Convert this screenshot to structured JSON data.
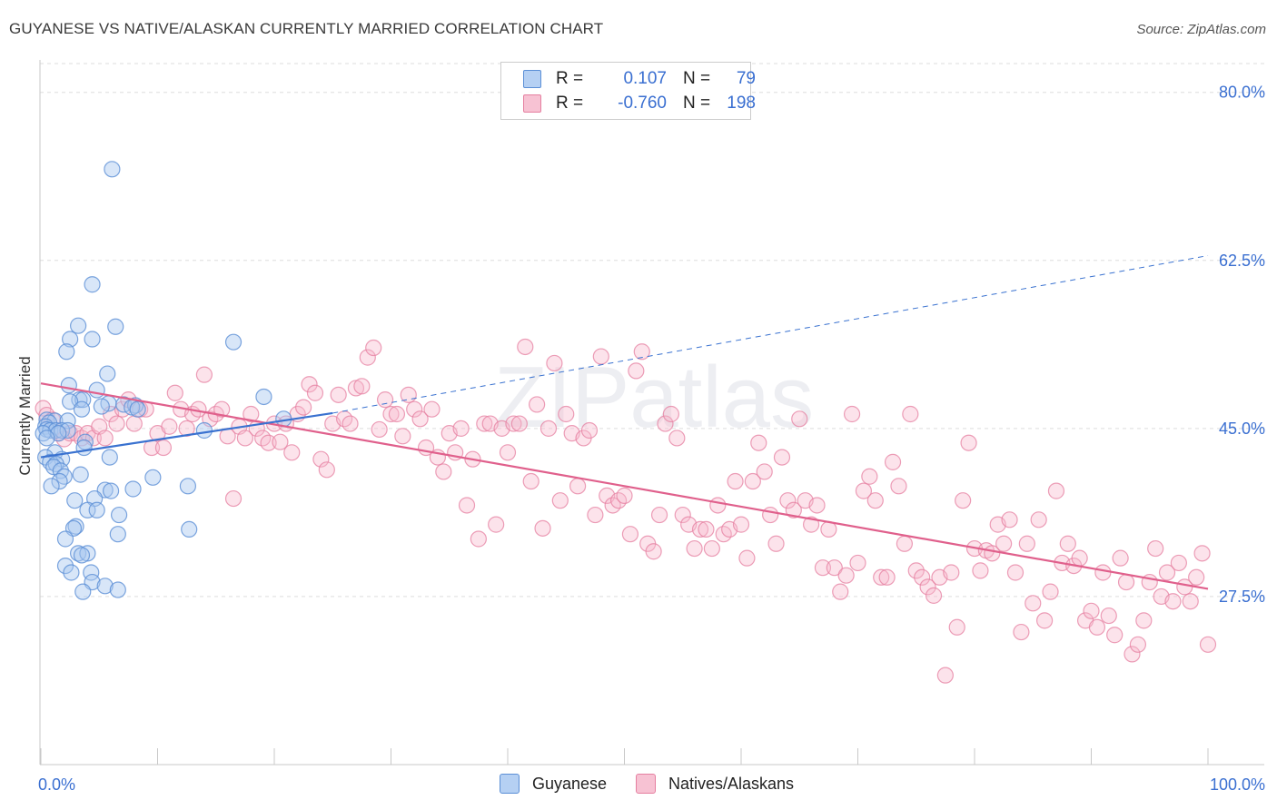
{
  "title": "GUYANESE VS NATIVE/ALASKAN CURRENTLY MARRIED CORRELATION CHART",
  "source": "Source: ZipAtlas.com",
  "watermark": "ZIPatlas",
  "legend": {
    "rows": [
      {
        "r_label": "R =",
        "r_value": "0.107",
        "n_label": "N =",
        "n_value": "79"
      },
      {
        "r_label": "R =",
        "r_value": "-0.760",
        "n_label": "N =",
        "n_value": "198"
      }
    ]
  },
  "bottom_legend": [
    "Guyanese",
    "Natives/Alaskans"
  ],
  "colors": {
    "guyanese_fill": "#a8c8f0",
    "guyanese_stroke": "#5b8fd6",
    "guyanese_line": "#3a72d0",
    "natives_fill": "#f7b8cc",
    "natives_stroke": "#e57fa0",
    "natives_line": "#e0608c",
    "tick_label": "#3a6fd1"
  },
  "chart_data": {
    "type": "scatter",
    "title": "GUYANESE VS NATIVE/ALASKAN CURRENTLY MARRIED CORRELATION CHART",
    "xlabel": "",
    "ylabel": "Currently Married",
    "xlim": [
      0,
      100
    ],
    "ylim": [
      10,
      83
    ],
    "x_tick_labels": [
      "0.0%",
      "100.0%"
    ],
    "y_ticks": [
      27.5,
      45.0,
      62.5,
      80.0
    ],
    "y_tick_labels": [
      "27.5%",
      "45.0%",
      "62.5%",
      "80.0%"
    ],
    "grid": true,
    "series": [
      {
        "name": "Guyanese",
        "points": [
          [
            6.1,
            72
          ],
          [
            4.4,
            60
          ],
          [
            6.4,
            55.6
          ],
          [
            2.5,
            54.3
          ],
          [
            3.2,
            55.7
          ],
          [
            4.4,
            54.3
          ],
          [
            2.2,
            53
          ],
          [
            16.5,
            54
          ],
          [
            5.7,
            50.7
          ],
          [
            2.4,
            49.5
          ],
          [
            4.8,
            49
          ],
          [
            19.1,
            48.3
          ],
          [
            3.3,
            48
          ],
          [
            3.6,
            48
          ],
          [
            2.5,
            47.8
          ],
          [
            5.8,
            47.6
          ],
          [
            7.1,
            47.5
          ],
          [
            8.1,
            47.4
          ],
          [
            5.2,
            47.3
          ],
          [
            7.8,
            47.2
          ],
          [
            8.3,
            47
          ],
          [
            3.5,
            47
          ],
          [
            20.8,
            46
          ],
          [
            0.5,
            45.9
          ],
          [
            1.2,
            45.8
          ],
          [
            2.3,
            45.8
          ],
          [
            0.7,
            45.6
          ],
          [
            0.4,
            45.2
          ],
          [
            0.5,
            44.9
          ],
          [
            0.8,
            44.8
          ],
          [
            1.3,
            44.8
          ],
          [
            1.8,
            44.8
          ],
          [
            2.3,
            44.8
          ],
          [
            0.2,
            44.5
          ],
          [
            1.5,
            44.5
          ],
          [
            14,
            44.8
          ],
          [
            0.5,
            44
          ],
          [
            3.8,
            43.6
          ],
          [
            3.7,
            43
          ],
          [
            1.2,
            42.5
          ],
          [
            0.4,
            42
          ],
          [
            5.9,
            42
          ],
          [
            1.8,
            41.8
          ],
          [
            0.8,
            41.5
          ],
          [
            1.3,
            41.3
          ],
          [
            1.1,
            41
          ],
          [
            1.7,
            40.6
          ],
          [
            3.4,
            40.2
          ],
          [
            2,
            40
          ],
          [
            9.6,
            39.9
          ],
          [
            1.6,
            39.5
          ],
          [
            0.9,
            39
          ],
          [
            12.6,
            39
          ],
          [
            7.9,
            38.7
          ],
          [
            5.5,
            38.6
          ],
          [
            6,
            38.5
          ],
          [
            4.6,
            37.7
          ],
          [
            2.9,
            37.5
          ],
          [
            4,
            36.5
          ],
          [
            4.8,
            36.5
          ],
          [
            6.7,
            36
          ],
          [
            3,
            34.8
          ],
          [
            2.8,
            34.6
          ],
          [
            6.6,
            34
          ],
          [
            12.7,
            34.5
          ],
          [
            2.1,
            33.5
          ],
          [
            3.2,
            32
          ],
          [
            4,
            32
          ],
          [
            3.5,
            31.8
          ],
          [
            2.1,
            30.7
          ],
          [
            2.6,
            30
          ],
          [
            4.3,
            30
          ],
          [
            4.4,
            29
          ],
          [
            5.5,
            28.6
          ],
          [
            6.6,
            28.2
          ],
          [
            3.6,
            28
          ]
        ],
        "trend_solid": [
          [
            0,
            42
          ],
          [
            25,
            46.6
          ]
        ],
        "trend_dashed": [
          [
            25,
            46.6
          ],
          [
            100,
            63
          ]
        ]
      },
      {
        "name": "Natives/Alaskans",
        "points": [
          [
            0.2,
            47.1
          ],
          [
            0.5,
            46.4
          ],
          [
            1,
            45.9
          ],
          [
            1.5,
            44.5
          ],
          [
            2,
            43.9
          ],
          [
            2.5,
            44.5
          ],
          [
            3,
            44.5
          ],
          [
            3.5,
            44
          ],
          [
            4,
            44.5
          ],
          [
            4.5,
            44
          ],
          [
            5,
            45.2
          ],
          [
            5.5,
            44
          ],
          [
            6,
            46.5
          ],
          [
            6.5,
            45.5
          ],
          [
            7,
            47
          ],
          [
            7.5,
            48
          ],
          [
            8,
            45.5
          ],
          [
            8.5,
            47
          ],
          [
            9,
            47
          ],
          [
            9.5,
            43
          ],
          [
            10,
            44.5
          ],
          [
            10.5,
            43
          ],
          [
            11,
            45.2
          ],
          [
            11.5,
            48.7
          ],
          [
            12,
            47
          ],
          [
            12.5,
            45
          ],
          [
            13,
            46.5
          ],
          [
            13.5,
            47
          ],
          [
            14,
            50.6
          ],
          [
            14.5,
            46
          ],
          [
            15,
            46.5
          ],
          [
            15.5,
            47
          ],
          [
            16,
            44.2
          ],
          [
            16.5,
            37.7
          ],
          [
            17,
            45.2
          ],
          [
            17.5,
            44
          ],
          [
            18,
            46.5
          ],
          [
            18.5,
            45
          ],
          [
            19,
            44
          ],
          [
            19.5,
            43.5
          ],
          [
            20,
            45.5
          ],
          [
            20.5,
            43.6
          ],
          [
            21,
            45.5
          ],
          [
            21.5,
            42.5
          ],
          [
            22,
            46.5
          ],
          [
            22.5,
            47.2
          ],
          [
            23,
            49.6
          ],
          [
            23.5,
            48.7
          ],
          [
            24,
            41.8
          ],
          [
            24.5,
            40.7
          ],
          [
            25,
            45.5
          ],
          [
            25.5,
            48.5
          ],
          [
            26,
            46
          ],
          [
            26.5,
            45.5
          ],
          [
            27,
            49.2
          ],
          [
            27.5,
            49.4
          ],
          [
            28,
            52.4
          ],
          [
            28.5,
            53.4
          ],
          [
            29,
            44.9
          ],
          [
            29.5,
            48
          ],
          [
            30,
            46.5
          ],
          [
            30.5,
            46.5
          ],
          [
            31,
            44.2
          ],
          [
            31.5,
            48.5
          ],
          [
            32,
            47
          ],
          [
            32.5,
            46
          ],
          [
            33,
            43
          ],
          [
            33.5,
            47
          ],
          [
            34,
            42
          ],
          [
            34.5,
            40.5
          ],
          [
            35,
            44.5
          ],
          [
            35.5,
            42.5
          ],
          [
            36,
            45
          ],
          [
            36.5,
            37
          ],
          [
            37,
            41.8
          ],
          [
            37.5,
            33.5
          ],
          [
            38,
            45.5
          ],
          [
            38.5,
            45.5
          ],
          [
            39,
            35
          ],
          [
            39.5,
            45
          ],
          [
            40,
            42.5
          ],
          [
            40.5,
            45.5
          ],
          [
            41,
            45.5
          ],
          [
            41.5,
            53.5
          ],
          [
            42,
            39.5
          ],
          [
            42.5,
            47.5
          ],
          [
            43,
            34.6
          ],
          [
            43.5,
            45
          ],
          [
            44,
            51.8
          ],
          [
            44.5,
            37.5
          ],
          [
            45,
            46.5
          ],
          [
            45.5,
            44.5
          ],
          [
            46,
            39
          ],
          [
            46.5,
            44
          ],
          [
            47,
            44.8
          ],
          [
            47.5,
            36
          ],
          [
            48,
            52.5
          ],
          [
            48.5,
            38
          ],
          [
            49,
            37
          ],
          [
            49.5,
            37.5
          ],
          [
            50,
            38
          ],
          [
            50.5,
            34
          ],
          [
            51,
            51
          ],
          [
            51.5,
            53
          ],
          [
            52,
            33
          ],
          [
            52.5,
            32.2
          ],
          [
            53,
            36
          ],
          [
            53.5,
            45.5
          ],
          [
            54,
            46.5
          ],
          [
            54.5,
            44
          ],
          [
            55,
            36
          ],
          [
            55.5,
            35
          ],
          [
            56,
            32.5
          ],
          [
            56.5,
            34.5
          ],
          [
            57,
            34.5
          ],
          [
            57.5,
            32.5
          ],
          [
            58,
            37
          ],
          [
            58.5,
            34
          ],
          [
            59,
            34.5
          ],
          [
            59.5,
            39.5
          ],
          [
            60,
            35
          ],
          [
            60.5,
            31.5
          ],
          [
            61,
            39.5
          ],
          [
            61.5,
            43.5
          ],
          [
            62,
            40.5
          ],
          [
            62.5,
            36
          ],
          [
            63,
            33
          ],
          [
            63.5,
            42
          ],
          [
            64,
            37.5
          ],
          [
            64.5,
            36.5
          ],
          [
            65,
            46
          ],
          [
            65.5,
            37.5
          ],
          [
            66,
            35
          ],
          [
            66.5,
            37
          ],
          [
            67,
            30.5
          ],
          [
            67.5,
            34.5
          ],
          [
            68,
            30.5
          ],
          [
            68.5,
            28
          ],
          [
            69,
            29.7
          ],
          [
            69.5,
            46.5
          ],
          [
            70,
            31
          ],
          [
            70.5,
            38.5
          ],
          [
            71,
            40
          ],
          [
            71.5,
            37.5
          ],
          [
            72,
            29.5
          ],
          [
            72.5,
            29.5
          ],
          [
            73,
            41.5
          ],
          [
            73.5,
            39
          ],
          [
            74,
            33
          ],
          [
            74.5,
            46.5
          ],
          [
            75,
            30.2
          ],
          [
            75.5,
            29.5
          ],
          [
            76,
            28.5
          ],
          [
            76.5,
            27.6
          ],
          [
            77,
            29.5
          ],
          [
            77.5,
            19.3
          ],
          [
            78,
            30
          ],
          [
            78.5,
            24.3
          ],
          [
            79,
            37.5
          ],
          [
            79.5,
            43.5
          ],
          [
            80,
            32.5
          ],
          [
            80.5,
            30.2
          ],
          [
            81,
            32.3
          ],
          [
            81.5,
            32
          ],
          [
            82,
            35
          ],
          [
            82.5,
            33
          ],
          [
            83,
            35.5
          ],
          [
            83.5,
            30
          ],
          [
            84,
            23.8
          ],
          [
            84.5,
            33
          ],
          [
            85,
            26.8
          ],
          [
            85.5,
            35.5
          ],
          [
            86,
            25
          ],
          [
            86.5,
            28
          ],
          [
            87,
            38.5
          ],
          [
            87.5,
            31
          ],
          [
            88,
            33
          ],
          [
            88.5,
            30.7
          ],
          [
            89,
            31.5
          ],
          [
            89.5,
            25
          ],
          [
            90,
            26
          ],
          [
            90.5,
            24.3
          ],
          [
            91,
            30
          ],
          [
            91.5,
            25.5
          ],
          [
            92,
            23.5
          ],
          [
            92.5,
            31.5
          ],
          [
            93,
            29
          ],
          [
            93.5,
            21.5
          ],
          [
            94,
            22.5
          ],
          [
            94.5,
            25
          ],
          [
            95,
            29
          ],
          [
            95.5,
            32.5
          ],
          [
            96,
            27.5
          ],
          [
            96.5,
            30
          ],
          [
            97,
            27
          ],
          [
            97.5,
            31
          ],
          [
            98,
            28.5
          ],
          [
            98.5,
            27
          ],
          [
            99,
            29.5
          ],
          [
            99.5,
            32
          ],
          [
            100,
            22.5
          ]
        ],
        "trend": [
          [
            0,
            49.7
          ],
          [
            100,
            28.3
          ]
        ]
      }
    ]
  }
}
